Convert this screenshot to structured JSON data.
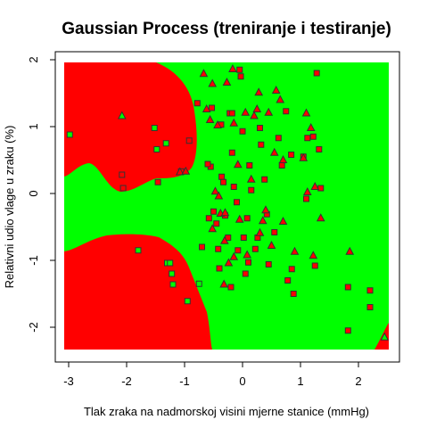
{
  "chart_data": {
    "type": "scatter",
    "title": "Gaussian Process (treniranje i testiranje)",
    "xlabel": "Tlak zraka na nadmorskoj visini mjerne stanice (mmHg)",
    "ylabel": "Relativni udio vlage u zraku (%)",
    "xlim": [
      -3.0,
      2.5
    ],
    "ylim": [
      -2.3,
      2.0
    ],
    "x_ticks": [
      -3,
      -2,
      -1,
      0,
      1,
      2
    ],
    "x_tick_labels": [
      "-3",
      "-2",
      "-1",
      "0",
      "1",
      "2"
    ],
    "y_ticks": [
      -2,
      -1,
      0,
      1,
      2
    ],
    "y_tick_labels": [
      "-2",
      "-1",
      "0",
      "1",
      "2"
    ],
    "grid": false,
    "regions": {
      "class_a_color": "#ff0000",
      "class_b_color": "#00ff00",
      "class_a_areas": [
        "top-left lobe",
        "bottom-left lobe",
        "bottom-right corner"
      ]
    },
    "marker_colors": {
      "red": "#ff0000",
      "green": "#00ff00",
      "outline": "#333333"
    },
    "series": [
      {
        "marker": "square",
        "points": [
          [
            -2.98,
            0.88
          ],
          [
            -2.08,
            0.28
          ],
          [
            -2.06,
            0.08
          ],
          [
            -1.8,
            -0.85
          ],
          [
            -1.52,
            0.98
          ],
          [
            -1.48,
            0.66
          ],
          [
            -1.46,
            0.17
          ],
          [
            -1.32,
            0.75
          ],
          [
            -1.3,
            -1.04
          ],
          [
            -1.25,
            -1.04
          ],
          [
            -1.22,
            -1.2
          ],
          [
            -1.2,
            -1.36
          ],
          [
            -1.06,
            0.33
          ],
          [
            -0.95,
            -1.61
          ],
          [
            -0.92,
            0.79
          ],
          [
            -0.78,
            1.35
          ],
          [
            -0.75,
            -1.35
          ],
          [
            -0.58,
            -0.37
          ],
          [
            -0.55,
            0.4
          ],
          [
            -0.53,
            1.28
          ],
          [
            -0.5,
            -0.27
          ],
          [
            -0.45,
            -0.45
          ],
          [
            -0.42,
            -0.83
          ],
          [
            -0.4,
            -1.12
          ],
          [
            -0.37,
            1.03
          ],
          [
            -0.36,
            0.25
          ],
          [
            -0.33,
            0.17
          ],
          [
            -0.3,
            -0.33
          ],
          [
            -0.25,
            -0.66
          ],
          [
            -0.22,
            1.2
          ],
          [
            -0.18,
            0.61
          ],
          [
            -0.18,
            1.2
          ],
          [
            -0.15,
            0.1
          ],
          [
            -0.1,
            -0.13
          ],
          [
            -0.08,
            -0.85
          ],
          [
            -0.05,
            1.85
          ],
          [
            -0.03,
            1.75
          ],
          [
            0.0,
            0.93
          ],
          [
            0.02,
            -0.66
          ],
          [
            0.08,
            -0.37
          ],
          [
            0.1,
            -1.03
          ],
          [
            0.12,
            0.42
          ],
          [
            0.15,
            0.05
          ],
          [
            0.22,
            -0.83
          ],
          [
            0.26,
            -0.66
          ],
          [
            0.3,
            0.98
          ],
          [
            0.32,
            0.73
          ],
          [
            0.38,
            0.21
          ],
          [
            0.42,
            -0.31
          ],
          [
            0.45,
            -1.06
          ],
          [
            0.55,
            -0.58
          ],
          [
            0.62,
            0.83
          ],
          [
            0.68,
            0.42
          ],
          [
            0.75,
            1.23
          ],
          [
            0.78,
            -1.3
          ],
          [
            0.84,
            0.58
          ],
          [
            0.85,
            -1.13
          ],
          [
            0.88,
            -1.5
          ],
          [
            1.05,
            0.55
          ],
          [
            1.1,
            -0.08
          ],
          [
            1.12,
            0.83
          ],
          [
            1.22,
            0.85
          ],
          [
            1.25,
            -1.08
          ],
          [
            1.28,
            1.8
          ],
          [
            1.32,
            0.66
          ],
          [
            1.35,
            0.08
          ],
          [
            1.82,
            -1.4
          ],
          [
            1.82,
            -2.05
          ],
          [
            2.2,
            -1.45
          ],
          [
            2.2,
            -1.7
          ],
          [
            -0.6,
            0.44
          ],
          [
            -0.2,
            -1.4
          ],
          [
            0.05,
            -1.2
          ],
          [
            -0.7,
            -0.8
          ]
        ]
      },
      {
        "marker": "triangle",
        "points": [
          [
            -2.08,
            1.16
          ],
          [
            -1.08,
            0.32
          ],
          [
            -0.98,
            0.33
          ],
          [
            -0.67,
            1.79
          ],
          [
            -0.62,
            1.26
          ],
          [
            -0.52,
            -0.53
          ],
          [
            -0.52,
            1.64
          ],
          [
            -0.47,
            0.03
          ],
          [
            -0.43,
            1.02
          ],
          [
            -0.41,
            -0.04
          ],
          [
            -0.38,
            -0.3
          ],
          [
            -0.32,
            -1.36
          ],
          [
            -0.31,
            -0.71
          ],
          [
            -0.3,
            -0.29
          ],
          [
            -0.27,
            1.66
          ],
          [
            -0.24,
            -1.04
          ],
          [
            -0.17,
            1.86
          ],
          [
            -0.15,
            -0.95
          ],
          [
            -0.08,
            0.43
          ],
          [
            -0.05,
            -0.39
          ],
          [
            0.05,
            1.21
          ],
          [
            0.08,
            -0.92
          ],
          [
            0.15,
            0.21
          ],
          [
            0.2,
            1.16
          ],
          [
            0.25,
            1.26
          ],
          [
            0.28,
            1.51
          ],
          [
            0.3,
            -0.59
          ],
          [
            0.35,
            -0.41
          ],
          [
            0.4,
            -0.25
          ],
          [
            0.45,
            1.21
          ],
          [
            0.5,
            -0.78
          ],
          [
            0.55,
            0.61
          ],
          [
            0.58,
            1.54
          ],
          [
            0.65,
            1.4
          ],
          [
            0.7,
            -0.42
          ],
          [
            0.9,
            -0.87
          ],
          [
            1.05,
            0.53
          ],
          [
            1.12,
            0.02
          ],
          [
            1.18,
            0.98
          ],
          [
            1.22,
            -0.93
          ],
          [
            1.25,
            0.1
          ],
          [
            1.35,
            -0.37
          ],
          [
            1.85,
            -0.87
          ],
          [
            2.45,
            -2.15
          ],
          [
            -0.56,
            1.1
          ],
          [
            -0.15,
            1.05
          ],
          [
            0.7,
            0.5
          ],
          [
            1.1,
            1.2
          ]
        ]
      }
    ]
  }
}
